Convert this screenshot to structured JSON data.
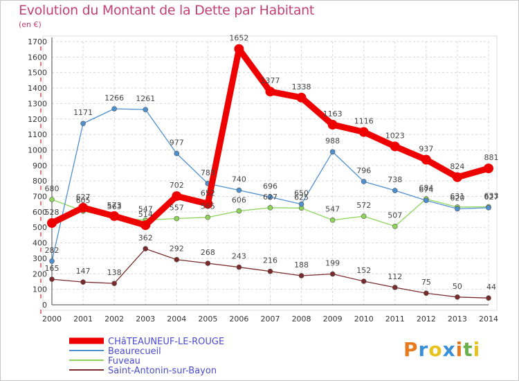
{
  "header": {
    "title": "Evolution du Montant de la Dette par Habitant",
    "subtitle": "(en €)"
  },
  "logo": {
    "text": "Proxiti",
    "colors": [
      "#e87a1e",
      "#3a8fd6",
      "#e8c21e",
      "#3a8fd6",
      "#e87a1e",
      "#6ab04c",
      "#e8c21e"
    ]
  },
  "chart_data": {
    "type": "line",
    "title": "Evolution du Montant de la Dette par Habitant",
    "subtitle": "(en €)",
    "x": [
      "2000",
      "2001",
      "2002",
      "2003",
      "2004",
      "2005",
      "2006",
      "2007",
      "2008",
      "2009",
      "2010",
      "2011",
      "2012",
      "2013",
      "2014"
    ],
    "yticks": [
      "0",
      "100",
      "200",
      "300",
      "400",
      "500",
      "600",
      "700",
      "800",
      "900",
      "1000",
      "1100",
      "1200",
      "1300",
      "1400",
      "1500",
      "1600",
      "1700"
    ],
    "ylim": [
      0,
      1700
    ],
    "grid": true,
    "legend_position": "bottom-left",
    "series": [
      {
        "name": "CHâTEAUNEUF-LE-ROUGE",
        "color": "#ee0000",
        "values": [
          528,
          627,
          573,
          514,
          702,
          652,
          1652,
          1377,
          1338,
          1163,
          1116,
          1023,
          937,
          824,
          881
        ],
        "labels": [
          "528",
          "627",
          "573",
          "514",
          "702",
          "652",
          "1652",
          "1377",
          "1338",
          "1163",
          "1116",
          "1023",
          "937",
          "824",
          "881"
        ]
      },
      {
        "name": "Beaurecueil",
        "color": "#4d8fcf",
        "values": [
          282,
          1171,
          1266,
          1261,
          977,
          783,
          740,
          696,
          650,
          988,
          796,
          738,
          674,
          620,
          627
        ],
        "labels": [
          "282",
          "1171",
          "1266",
          "1261",
          "977",
          "783",
          "740",
          "696",
          "650",
          "988",
          "796",
          "738",
          "674",
          "620",
          "627"
        ]
      },
      {
        "name": "Fuveau",
        "color": "#8ed45a",
        "values": [
          680,
          605,
          563,
          547,
          557,
          565,
          606,
          627,
          625,
          547,
          572,
          507,
          684,
          631,
          633
        ],
        "labels": [
          "680",
          "605",
          "563",
          "547",
          "557",
          "565",
          "606",
          "627",
          "625",
          "547",
          "572",
          "507",
          "684",
          "631",
          "633"
        ]
      },
      {
        "name": "Saint-Antonin-sur-Bayon",
        "color": "#7a2a2a",
        "values": [
          165,
          147,
          138,
          362,
          292,
          268,
          243,
          216,
          188,
          199,
          152,
          112,
          75,
          50,
          44
        ],
        "labels": [
          "165",
          "147",
          "138",
          "362",
          "292",
          "268",
          "243",
          "216",
          "188",
          "199",
          "152",
          "112",
          "75",
          "50",
          "44"
        ]
      }
    ]
  }
}
